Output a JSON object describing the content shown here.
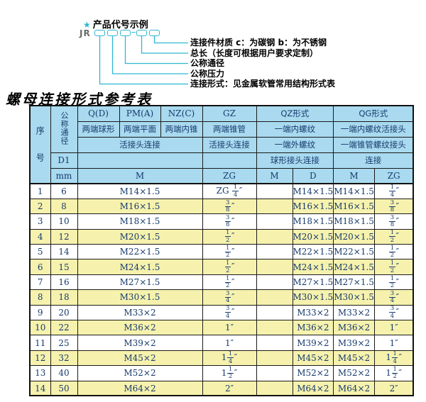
{
  "colors": {
    "accent_cyan": "#2fb8d4",
    "header_blue": "#a9daef",
    "row_yellow": "#f6f2ad",
    "text_navy": "#173a6d"
  },
  "diagram": {
    "star": "★",
    "title": "产品代号示例",
    "code_prefix": "JR",
    "labels": [
      "连接件材质  c：为碳钢  b：为不锈钢",
      "总长（长度可根据用户要求定制）",
      "公称通径",
      "公称压力",
      "连接形式：见金属软管常用结构形式表"
    ]
  },
  "table_title": "螺母连接形式参考表",
  "table": {
    "header": {
      "seq": "序号",
      "dn": "公称通径",
      "d1": "D1",
      "mm": "mm",
      "qd": "Q(D)",
      "pma": "PM(A)",
      "nzc": "NZ(C)",
      "gz": "GZ",
      "qz": "QZ形式",
      "qg": "QG形式",
      "qd_desc": "两端球形",
      "pma_desc": "两端平面",
      "nzc_desc": "两端内锥",
      "gz_desc": "两端锥管",
      "qz_desc1": "一端内螺纹",
      "qg_desc1": "一端内螺纹活接头",
      "union_conn": "活接头连接",
      "gz_conn": "活接头连接",
      "qz_desc2": "一端外螺纹",
      "qg_desc2": "一端锥管螺纹接头",
      "qz_conn": "球形接头连接",
      "qg_conn": "连接",
      "m_main": "M",
      "zg_gz": "ZG",
      "qz_m": "M",
      "qz_d": "D",
      "qg_m": "M",
      "qg_zg": "ZG"
    },
    "rows": [
      [
        "1",
        "6",
        "M14×1.5",
        "ZG {1/4}″",
        "",
        "M14×1.5",
        "M14×1.5",
        "{1/4}″"
      ],
      [
        "2",
        "8",
        "M16×1.5",
        "{3/8}″",
        "",
        "M16×1.5",
        "M16×1.5",
        "{3/8}″"
      ],
      [
        "3",
        "10",
        "M18×1.5",
        "{3/8}″",
        "",
        "M18×1.5",
        "M18×1.5",
        "{3/8}″"
      ],
      [
        "4",
        "12",
        "M20×1.5",
        "{1/2}″",
        "",
        "M20×1.5",
        "M20×1.5",
        "{1/2}″"
      ],
      [
        "5",
        "14",
        "M22×1.5",
        "{1/2}″",
        "",
        "M22×1.5",
        "M22×1.5",
        "{1/2}″"
      ],
      [
        "6",
        "15",
        "M24×1.5",
        "{1/2}″",
        "",
        "M24×1.5",
        "M24×1.5",
        "{1/2}″"
      ],
      [
        "7",
        "16",
        "M27×1.5",
        "{1/2}″",
        "",
        "M27×1.5",
        "M27×1.5",
        "{1/2}″"
      ],
      [
        "8",
        "18",
        "M30×1.5",
        "{3/4}″",
        "",
        "M30×1.5",
        "M30×1.5",
        "{3/4}″"
      ],
      [
        "9",
        "20",
        "M33×2",
        "{3/4}″",
        "",
        "M33×2",
        "M33×2",
        "{3/4}″"
      ],
      [
        "10",
        "22",
        "M36×2",
        "1″",
        "",
        "M36×2",
        "M36×2",
        "1″"
      ],
      [
        "11",
        "25",
        "M39×2",
        "1″",
        "",
        "M39×2",
        "M39×2",
        "1″"
      ],
      [
        "12",
        "32",
        "M45×2",
        "1{1/4}″",
        "",
        "M45×2",
        "M45×2",
        "1{1/4}″"
      ],
      [
        "13",
        "40",
        "M52×2",
        "1{1/2}″",
        "",
        "M52×2",
        "M52×2",
        "1{1/2}″"
      ],
      [
        "14",
        "50",
        "M64×2",
        "2″",
        "",
        "M64×2",
        "M64×2",
        "2″"
      ]
    ]
  }
}
